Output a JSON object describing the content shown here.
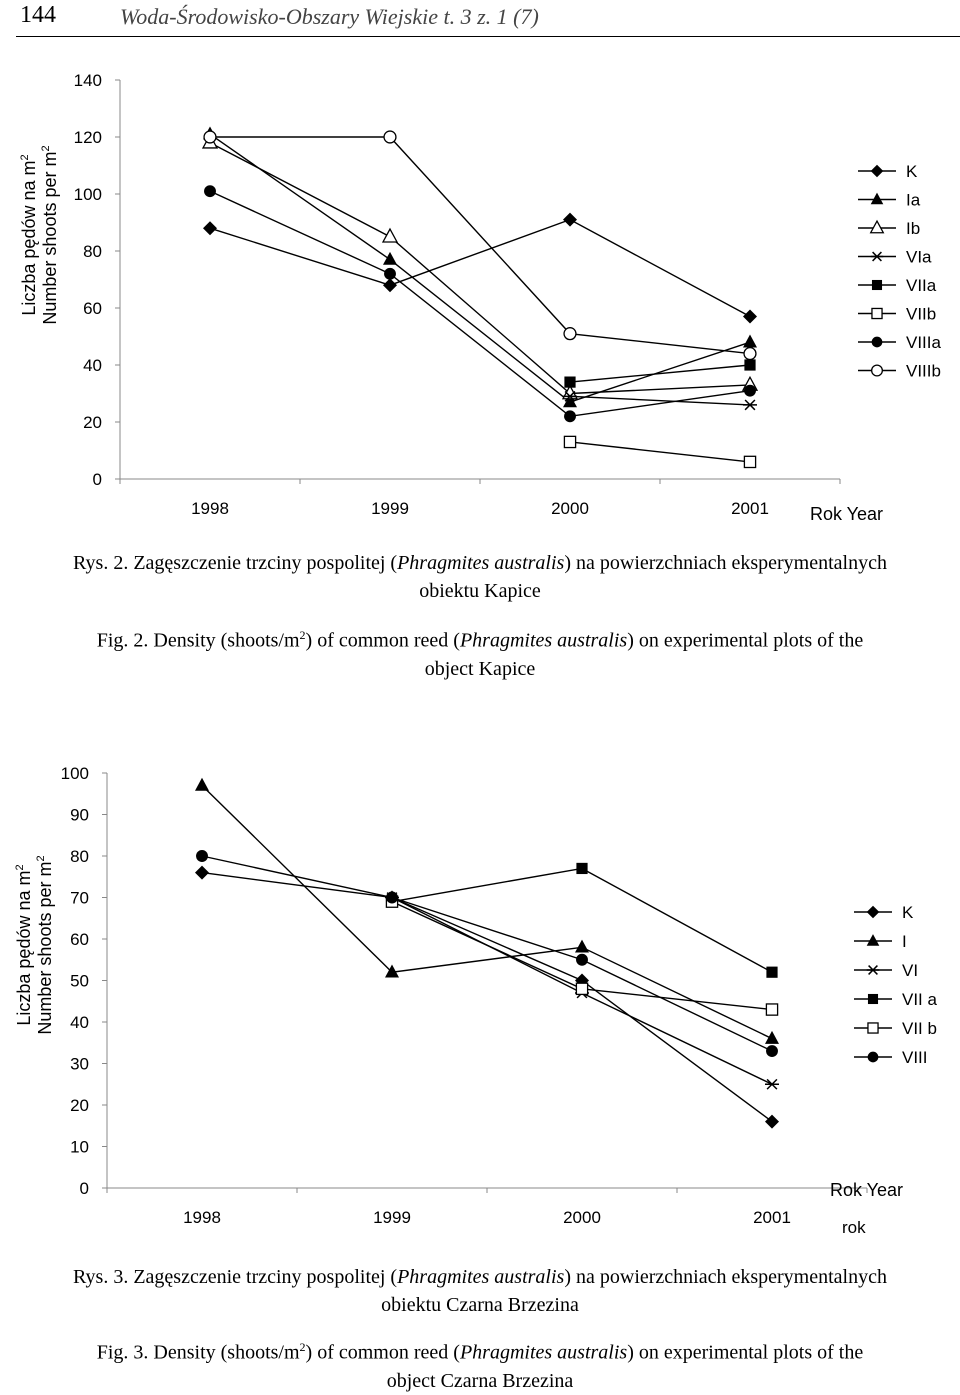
{
  "header": {
    "page_number": "144",
    "journal": "Woda-Środowisko-Obszary Wiejskie t. 3 z. 1 (7)"
  },
  "chart_data": [
    {
      "type": "line",
      "ylabel_pl": "Liczba pędów na m",
      "ylabel_en": "Number shoots per m",
      "ylabel_sup": "2",
      "xlabel": "Rok  Year",
      "xlabel2": "",
      "ylim": [
        0,
        140
      ],
      "y_ticks": [
        0,
        20,
        40,
        60,
        80,
        100,
        120,
        140
      ],
      "categories": [
        "1998",
        "1999",
        "2000",
        "2001"
      ],
      "series": [
        {
          "name": "K",
          "marker": "diamond",
          "values": [
            88,
            68,
            91,
            57
          ]
        },
        {
          "name": "Ia",
          "marker": "triangle",
          "values": [
            121,
            77,
            27,
            48
          ]
        },
        {
          "name": "Ib",
          "marker": "triangle-open",
          "values": [
            118,
            85,
            30,
            33
          ]
        },
        {
          "name": "VIa",
          "marker": "star",
          "values": [
            null,
            null,
            29,
            26
          ]
        },
        {
          "name": "VIIa",
          "marker": "square",
          "values": [
            null,
            null,
            34,
            40
          ]
        },
        {
          "name": "VIIb",
          "marker": "square-open",
          "values": [
            null,
            null,
            13,
            6
          ]
        },
        {
          "name": "VIIIa",
          "marker": "circle",
          "values": [
            101,
            72,
            22,
            31
          ]
        },
        {
          "name": "VIIIb",
          "marker": "circle-open",
          "values": [
            120,
            120,
            51,
            44
          ]
        }
      ],
      "caption_pl": {
        "prefix": "Rys. 2. Zagęszczenie trzciny pospolitej (",
        "species": "Phragmites australis",
        "suffix": ") na powierzchniach eksperymentalnych",
        "line2": "obiektu Kapice"
      },
      "caption_en": {
        "prefix": "Fig. 2. Density (shoots/m",
        "sup": "2",
        "mid": ") of common reed (",
        "species": "Phragmites australis",
        "suffix": ") on experimental plots of the",
        "line2": "object Kapice"
      }
    },
    {
      "type": "line",
      "ylabel_pl": "Liczba pędów na m",
      "ylabel_en": "Number shoots per m",
      "ylabel_sup": "2",
      "xlabel": "Rok  Year",
      "xlabel2": "rok",
      "ylim": [
        0,
        100
      ],
      "y_ticks": [
        0,
        10,
        20,
        30,
        40,
        50,
        60,
        70,
        80,
        90,
        100
      ],
      "categories": [
        "1998",
        "1999",
        "2000",
        "2001"
      ],
      "series": [
        {
          "name": "K",
          "marker": "diamond",
          "values": [
            76,
            70,
            50,
            16
          ]
        },
        {
          "name": "I",
          "marker": "triangle",
          "values": [
            97,
            52,
            58,
            36
          ]
        },
        {
          "name": "VI",
          "marker": "star",
          "values": [
            null,
            70,
            47,
            25
          ]
        },
        {
          "name": "VII a",
          "marker": "square",
          "values": [
            null,
            69,
            77,
            52
          ]
        },
        {
          "name": "VII b",
          "marker": "square-open",
          "values": [
            null,
            69,
            48,
            43
          ]
        },
        {
          "name": "VIII",
          "marker": "circle",
          "values": [
            80,
            70,
            55,
            33
          ]
        }
      ],
      "caption_pl": {
        "prefix": "Rys. 3. Zagęszczenie trzciny pospolitej (",
        "species": "Phragmites australis",
        "suffix": ") na powierzchniach eksperymentalnych",
        "line2": "obiektu Czarna Brzezina"
      },
      "caption_en": {
        "prefix": "Fig. 3. Density (shoots/m",
        "sup": "2",
        "mid": ") of common reed (",
        "species": "Phragmites australis",
        "suffix": ") on experimental plots of the",
        "line2": "object Czarna Brzezina"
      }
    }
  ]
}
